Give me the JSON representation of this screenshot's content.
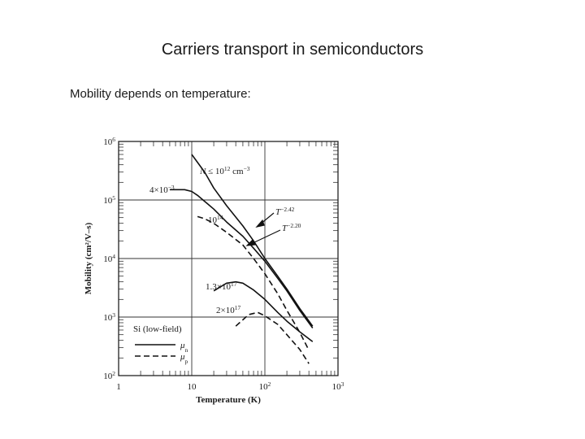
{
  "slide": {
    "title": "Carriers transport in semiconductors",
    "subtitle": "Mobility depends on temperature:"
  },
  "chart_data": {
    "type": "line",
    "xlabel": "Temperature (K)",
    "ylabel": "Mobility (cm²/V–s)",
    "xscale": "log",
    "yscale": "log",
    "xlim": [
      1,
      1000
    ],
    "ylim": [
      100,
      1000000
    ],
    "grid": true,
    "x_ticks": [
      {
        "value": 1,
        "base": "1",
        "exp": ""
      },
      {
        "value": 10,
        "base": "10",
        "exp": ""
      },
      {
        "value": 100,
        "base": "10",
        "exp": "2"
      },
      {
        "value": 1000,
        "base": "10",
        "exp": "3"
      }
    ],
    "y_ticks": [
      {
        "value": 100,
        "base": "10",
        "exp": "2"
      },
      {
        "value": 1000,
        "base": "10",
        "exp": "3"
      },
      {
        "value": 10000,
        "base": "10",
        "exp": "4"
      },
      {
        "value": 100000,
        "base": "10",
        "exp": "5"
      },
      {
        "value": 1000000,
        "base": "10",
        "exp": "6"
      }
    ],
    "legend": {
      "title": "Si (low-field)",
      "position": "bottom-left",
      "entries": [
        {
          "symbol": "μ",
          "sub": "n",
          "style": "solid"
        },
        {
          "symbol": "μ",
          "sub": "p",
          "style": "dashed"
        }
      ]
    },
    "series": [
      {
        "style": "solid",
        "x": [
          10,
          15,
          20,
          30,
          50,
          70,
          100,
          150,
          200,
          300,
          450
        ],
        "y": [
          600000,
          300000,
          160000,
          80000,
          36000,
          20000,
          10000,
          5000,
          3000,
          1400,
          700
        ]
      },
      {
        "style": "solid",
        "x": [
          5,
          8,
          10,
          12,
          15,
          20,
          30,
          50,
          70,
          100,
          150,
          200,
          300,
          450
        ],
        "y": [
          150000,
          150000,
          140000,
          120000,
          95000,
          70000,
          42000,
          24000,
          15000,
          9000,
          4600,
          2800,
          1300,
          650
        ]
      },
      {
        "style": "dashed",
        "x": [
          12,
          15,
          20,
          30,
          50,
          70,
          100,
          150,
          200,
          300,
          400
        ],
        "y": [
          52000,
          48000,
          40000,
          28000,
          17000,
          10000,
          5500,
          2500,
          1300,
          550,
          270
        ]
      },
      {
        "style": "solid",
        "x": [
          20,
          30,
          40,
          50,
          70,
          100,
          150,
          200,
          300,
          450
        ],
        "y": [
          2800,
          3800,
          4000,
          3800,
          2900,
          2000,
          1200,
          850,
          560,
          380
        ]
      },
      {
        "style": "dashed",
        "x": [
          40,
          60,
          80,
          100,
          150,
          200,
          300,
          400
        ],
        "y": [
          700,
          1100,
          1200,
          1050,
          750,
          500,
          280,
          160
        ]
      }
    ],
    "annotations": [
      {
        "base": "4×10",
        "exp": "−3"
      },
      {
        "base": "N ≤ 10",
        "exp": "12",
        "suffix": " cm",
        "suffix_exp": "−3"
      },
      {
        "base": "10",
        "exp": "14"
      },
      {
        "base": "T",
        "exp": "−2.42"
      },
      {
        "base": "T",
        "exp": "−2.20"
      },
      {
        "base": "1.3×10",
        "exp": "17"
      },
      {
        "base": "2×10",
        "exp": "17"
      }
    ]
  }
}
